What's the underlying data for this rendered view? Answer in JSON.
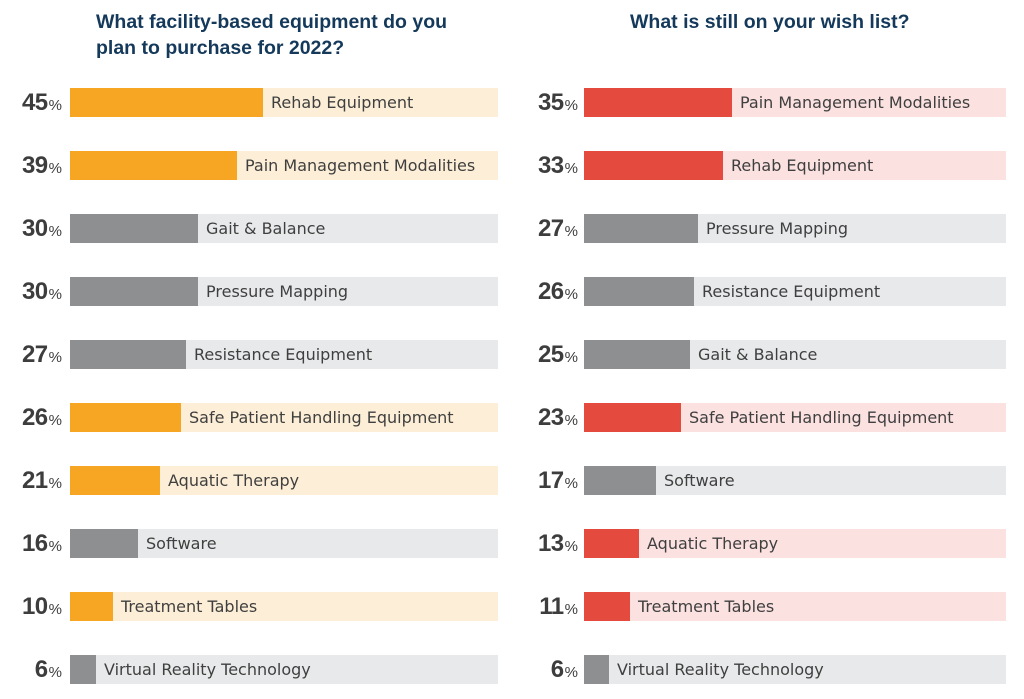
{
  "colors": {
    "title": "#14395a",
    "text": "#3f3f3f",
    "orange": "#f6a623",
    "orange_track": "#fdefd7",
    "red": "#e54a3e",
    "red_track": "#fbe1e0",
    "gray": "#8e8f91",
    "gray_track": "#e8e9ea"
  },
  "percent_symbol": "%",
  "chart_data": [
    {
      "type": "bar",
      "title": "What facility-based equipment do you\nplan to purchase for 2022?",
      "accent_color": "#f6a623",
      "accent_track_color": "#fdefd7",
      "xlim": [
        0,
        100
      ],
      "categories": [
        "Rehab Equipment",
        "Pain Management Modalities",
        "Gait & Balance",
        "Pressure Mapping",
        "Resistance Equipment",
        "Safe Patient Handling Equipment",
        "Aquatic Therapy",
        "Software",
        "Treatment Tables",
        "Virtual Reality Technology"
      ],
      "values": [
        45,
        39,
        30,
        30,
        27,
        26,
        21,
        16,
        10,
        6
      ],
      "highlighted": [
        true,
        true,
        false,
        false,
        false,
        true,
        true,
        false,
        true,
        false
      ]
    },
    {
      "type": "bar",
      "title": "What is still on your wish list?",
      "accent_color": "#e54a3e",
      "accent_track_color": "#fbe1e0",
      "xlim": [
        0,
        100
      ],
      "categories": [
        "Pain Management Modalities",
        "Rehab Equipment",
        "Pressure Mapping",
        "Resistance Equipment",
        "Gait & Balance",
        "Safe Patient Handling Equipment",
        "Software",
        "Aquatic Therapy",
        "Treatment Tables",
        "Virtual Reality Technology"
      ],
      "values": [
        35,
        33,
        27,
        26,
        25,
        23,
        17,
        13,
        11,
        6
      ],
      "highlighted": [
        true,
        true,
        false,
        false,
        false,
        true,
        false,
        true,
        true,
        false
      ]
    }
  ]
}
